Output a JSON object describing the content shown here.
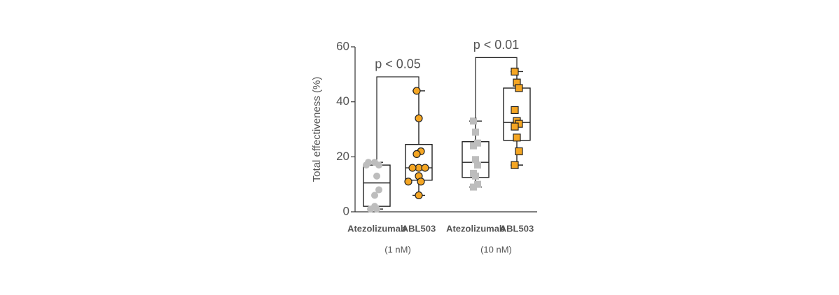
{
  "chart_data": {
    "type": "box",
    "y_label": "Total effectiveness (%)",
    "ylim": [
      0,
      60
    ],
    "yticks": [
      0,
      20,
      40,
      60
    ],
    "categories": [
      "Atezolizumab",
      "ABL503",
      "Atezolizumab",
      "ABL503"
    ],
    "group_labels": [
      "(1 nM)",
      "(10 nM)"
    ],
    "boxes": [
      {
        "min": 1,
        "q1": 2,
        "median": 10.5,
        "q3": 17,
        "max": 18,
        "color": "#bdbdbd",
        "marker": "circle",
        "points": [
          18,
          18,
          17,
          17,
          13,
          8,
          6,
          1,
          1,
          2
        ]
      },
      {
        "min": 6,
        "q1": 11.5,
        "median": 16,
        "q3": 24.5,
        "max": 44,
        "color": "#f5a623",
        "marker": "circle",
        "points": [
          44,
          34,
          22,
          21,
          16,
          16,
          16,
          13,
          11,
          11,
          6
        ]
      },
      {
        "min": 9,
        "q1": 12.5,
        "median": 18,
        "q3": 25.5,
        "max": 33,
        "color": "#bdbdbd",
        "marker": "square",
        "points": [
          33,
          29,
          25,
          24,
          19,
          17,
          14,
          13,
          10,
          9
        ]
      },
      {
        "min": 17,
        "q1": 26,
        "median": 32.5,
        "q3": 45,
        "max": 51,
        "color": "#f5a623",
        "marker": "square",
        "points": [
          51,
          47,
          45,
          37,
          33,
          32,
          31,
          27,
          22,
          17
        ]
      }
    ],
    "comparisons": [
      {
        "label": "p < 0.05",
        "from": 0,
        "to": 1
      },
      {
        "label": "p < 0.01",
        "from": 2,
        "to": 3
      }
    ]
  }
}
